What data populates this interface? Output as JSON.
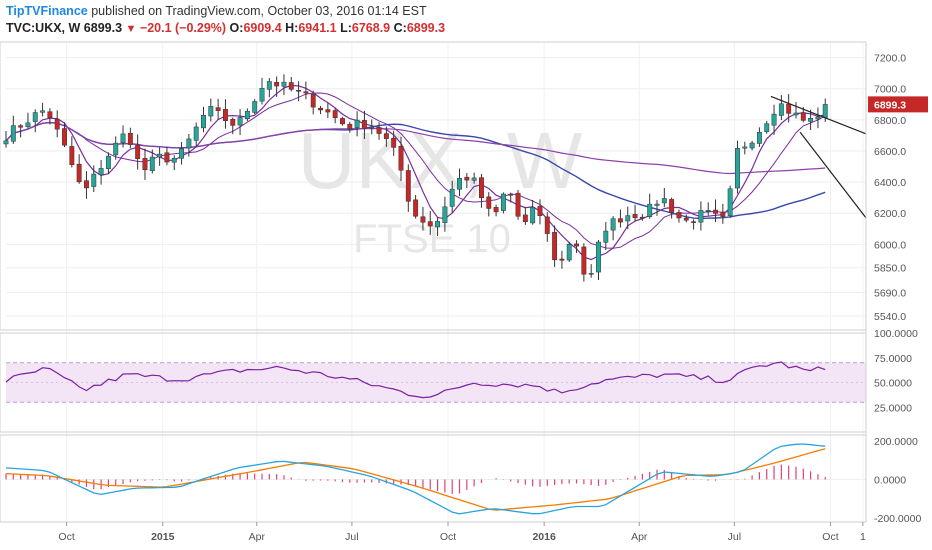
{
  "header": {
    "publisher": "TipTVFinance",
    "published_text": "published on TradingView.com, October 03, 2016 01:14 EST",
    "symbol": "TVC:UKX, W",
    "last": "6899.3",
    "change": "−20.1 (−0.29%)",
    "open_label": "O:",
    "open": "6909.4",
    "high_label": "H:",
    "high": "6941.1",
    "low_label": "L:",
    "low": "6768.9",
    "close_label": "C:",
    "close": "6899.3"
  },
  "watermark": {
    "symbol": "UKX, W",
    "name": "FTSE 10"
  },
  "colors": {
    "up": "#26a69a",
    "down": "#c62828",
    "wick": "#333333",
    "ma_fast": "#7b2d9e",
    "ma_mid": "#3949ab",
    "ma_slow": "#8e3fa8",
    "rsi": "#7b1fa2",
    "rsi_band": "#f3e5f5",
    "macd": "#29a3e0",
    "signal": "#f57c00",
    "hist": "#e0407a",
    "price_tag": "#c62828"
  },
  "chart_data": [
    {
      "type": "candlestick",
      "pane": "price",
      "yaxis_ticks": [
        "7200.0",
        "7000.0",
        "6800.0",
        "6600.0",
        "6400.0",
        "6200.0",
        "6000.0",
        "5850.0",
        "5690.0",
        "5540.0"
      ],
      "ylim": [
        5450,
        7300
      ],
      "last_price_label": "6899.3",
      "xaxis_ticks": [
        "Oct",
        "2015",
        "Apr",
        "Jul",
        "Oct",
        "2016",
        "Apr",
        "Jul",
        "Oct",
        "1"
      ],
      "x_start": "2014-08-04",
      "x_end": "2016-11-04",
      "keypoints": [
        [
          "2014-08-04",
          6700
        ],
        [
          "2014-08-29",
          6820
        ],
        [
          "2014-09-12",
          6870
        ],
        [
          "2014-10-03",
          6560
        ],
        [
          "2014-10-17",
          6320
        ],
        [
          "2014-11-07",
          6550
        ],
        [
          "2014-11-28",
          6730
        ],
        [
          "2014-12-12",
          6460
        ],
        [
          "2014-12-26",
          6560
        ],
        [
          "2015-01-16",
          6550
        ],
        [
          "2015-02-13",
          6870
        ],
        [
          "2015-03-13",
          6760
        ],
        [
          "2015-04-10",
          7060
        ],
        [
          "2015-04-24",
          7020
        ],
        [
          "2015-05-15",
          6960
        ],
        [
          "2015-06-05",
          6860
        ],
        [
          "2015-06-26",
          6760
        ],
        [
          "2015-07-17",
          6780
        ],
        [
          "2015-07-31",
          6700
        ],
        [
          "2015-08-14",
          6550
        ],
        [
          "2015-08-28",
          6200
        ],
        [
          "2015-09-18",
          6110
        ],
        [
          "2015-10-09",
          6410
        ],
        [
          "2015-10-23",
          6440
        ],
        [
          "2015-11-13",
          6150
        ],
        [
          "2015-11-27",
          6380
        ],
        [
          "2015-12-11",
          6100
        ],
        [
          "2015-12-25",
          6250
        ],
        [
          "2016-01-15",
          5840
        ],
        [
          "2016-01-29",
          6080
        ],
        [
          "2016-02-12",
          5710
        ],
        [
          "2016-02-26",
          6100
        ],
        [
          "2016-03-18",
          6190
        ],
        [
          "2016-04-08",
          6200
        ],
        [
          "2016-04-22",
          6310
        ],
        [
          "2016-05-13",
          6140
        ],
        [
          "2016-06-03",
          6200
        ],
        [
          "2016-06-24",
          6140
        ],
        [
          "2016-07-01",
          6580
        ],
        [
          "2016-07-22",
          6710
        ],
        [
          "2016-08-12",
          6910
        ],
        [
          "2016-08-26",
          6840
        ],
        [
          "2016-09-09",
          6780
        ],
        [
          "2016-09-30",
          6899.3
        ]
      ],
      "annotations": {
        "trendline_upper": [
          [
            "2016-08-05",
            6950
          ],
          [
            "2016-11-04",
            6710
          ]
        ],
        "trendline_lower": [
          [
            "2016-09-02",
            6720
          ],
          [
            "2016-11-04",
            6170
          ]
        ]
      },
      "overlays": [
        "moving average (fast)",
        "moving average (mid)",
        "moving average (slow)"
      ]
    },
    {
      "type": "line",
      "pane": "rsi",
      "yaxis_ticks": [
        "100.0000",
        "75.0000",
        "50.0000",
        "25.0000"
      ],
      "ylim": [
        0,
        100
      ],
      "bands": [
        30,
        70
      ],
      "keypoints": [
        [
          "2014-08-04",
          52
        ],
        [
          "2014-09-12",
          64
        ],
        [
          "2014-10-17",
          42
        ],
        [
          "2014-11-28",
          58
        ],
        [
          "2015-01-16",
          53
        ],
        [
          "2015-03-13",
          62
        ],
        [
          "2015-04-24",
          65
        ],
        [
          "2015-06-26",
          54
        ],
        [
          "2015-08-28",
          38
        ],
        [
          "2015-09-18",
          36
        ],
        [
          "2015-10-23",
          50
        ],
        [
          "2015-12-25",
          47
        ],
        [
          "2016-01-15",
          40
        ],
        [
          "2016-02-26",
          52
        ],
        [
          "2016-04-22",
          58
        ],
        [
          "2016-06-24",
          52
        ],
        [
          "2016-07-22",
          66
        ],
        [
          "2016-08-12",
          70
        ],
        [
          "2016-09-09",
          61
        ],
        [
          "2016-09-30",
          65
        ]
      ]
    },
    {
      "type": "line",
      "pane": "macd",
      "yaxis_ticks": [
        "200.0000",
        "0.0000",
        "-200.0000"
      ],
      "ylim": [
        -220,
        230
      ],
      "series": [
        {
          "name": "MACD",
          "keypoints": [
            [
              "2014-08-04",
              60
            ],
            [
              "2014-09-12",
              45
            ],
            [
              "2014-10-31",
              -80
            ],
            [
              "2014-12-05",
              -45
            ],
            [
              "2015-01-16",
              -40
            ],
            [
              "2015-03-13",
              60
            ],
            [
              "2015-04-24",
              95
            ],
            [
              "2015-06-05",
              70
            ],
            [
              "2015-07-17",
              20
            ],
            [
              "2015-08-28",
              -60
            ],
            [
              "2015-10-09",
              -180
            ],
            [
              "2015-11-13",
              -150
            ],
            [
              "2015-12-25",
              -180
            ],
            [
              "2016-01-29",
              -140
            ],
            [
              "2016-02-26",
              -140
            ],
            [
              "2016-04-22",
              40
            ],
            [
              "2016-06-10",
              15
            ],
            [
              "2016-07-08",
              40
            ],
            [
              "2016-08-12",
              170
            ],
            [
              "2016-09-02",
              185
            ],
            [
              "2016-09-30",
              170
            ]
          ]
        },
        {
          "name": "Signal",
          "keypoints": [
            [
              "2014-08-04",
              30
            ],
            [
              "2014-09-12",
              20
            ],
            [
              "2014-11-07",
              -30
            ],
            [
              "2015-01-02",
              -40
            ],
            [
              "2015-03-27",
              40
            ],
            [
              "2015-05-15",
              90
            ],
            [
              "2015-07-03",
              55
            ],
            [
              "2015-09-04",
              -40
            ],
            [
              "2015-11-13",
              -160
            ],
            [
              "2016-01-15",
              -130
            ],
            [
              "2016-03-04",
              -100
            ],
            [
              "2016-05-13",
              20
            ],
            [
              "2016-06-24",
              25
            ],
            [
              "2016-08-05",
              80
            ],
            [
              "2016-09-30",
              165
            ]
          ]
        }
      ]
    }
  ]
}
